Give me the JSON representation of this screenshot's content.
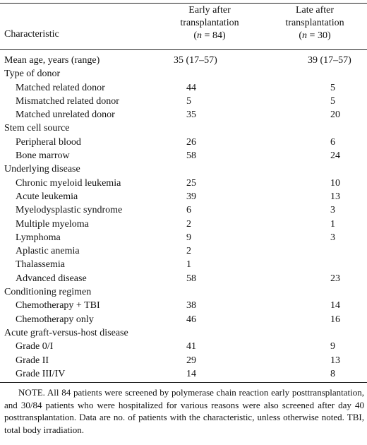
{
  "header": {
    "characteristic": "Characteristic",
    "early_line1": "Early after",
    "early_line2": "transplantation",
    "early_line3": "(n = 84)",
    "late_line1": "Late after",
    "late_line2": "transplantation",
    "late_line3": "(n = 30)"
  },
  "rows": [
    {
      "label": "Mean age, years (range)",
      "early": "35 (17–57)",
      "late": "39 (17–57)"
    },
    {
      "label": "Type of donor",
      "early": "",
      "late": ""
    },
    {
      "label": "Matched related donor",
      "early": "44",
      "late": "5"
    },
    {
      "label": "Mismatched related donor",
      "early": "5",
      "late": "5"
    },
    {
      "label": "Matched unrelated donor",
      "early": "35",
      "late": "20"
    },
    {
      "label": "Stem cell source",
      "early": "",
      "late": ""
    },
    {
      "label": "Peripheral blood",
      "early": "26",
      "late": "6"
    },
    {
      "label": "Bone marrow",
      "early": "58",
      "late": "24"
    },
    {
      "label": "Underlying disease",
      "early": "",
      "late": ""
    },
    {
      "label": "Chronic myeloid leukemia",
      "early": "25",
      "late": "10"
    },
    {
      "label": "Acute leukemia",
      "early": "39",
      "late": "13"
    },
    {
      "label": "Myelodysplastic syndrome",
      "early": "6",
      "late": "3"
    },
    {
      "label": "Multiple myeloma",
      "early": "2",
      "late": "1"
    },
    {
      "label": "Lymphoma",
      "early": "9",
      "late": "3"
    },
    {
      "label": "Aplastic anemia",
      "early": "2",
      "late": ""
    },
    {
      "label": "Thalassemia",
      "early": "1",
      "late": ""
    },
    {
      "label": "Advanced disease",
      "early": "58",
      "late": "23"
    },
    {
      "label": "Conditioning regimen",
      "early": "",
      "late": ""
    },
    {
      "label": "Chemotherapy + TBI",
      "early": "38",
      "late": "14"
    },
    {
      "label": "Chemotherapy only",
      "early": "46",
      "late": "16"
    },
    {
      "label": "Acute graft-versus-host disease",
      "early": "",
      "late": ""
    },
    {
      "label": "Grade 0/I",
      "early": "41",
      "late": "9"
    },
    {
      "label": "Grade II",
      "early": "29",
      "late": "13"
    },
    {
      "label": "Grade III/IV",
      "early": "14",
      "late": "8"
    }
  ],
  "note": "NOTE.   All 84 patients were screened by polymerase chain reaction early posttransplantation, and 30/84 patients who were hospitalized for various reasons were also screened after day 40 posttransplantation. Data are no. of patients with the characteristic, unless otherwise noted. TBI, total body irradiation."
}
